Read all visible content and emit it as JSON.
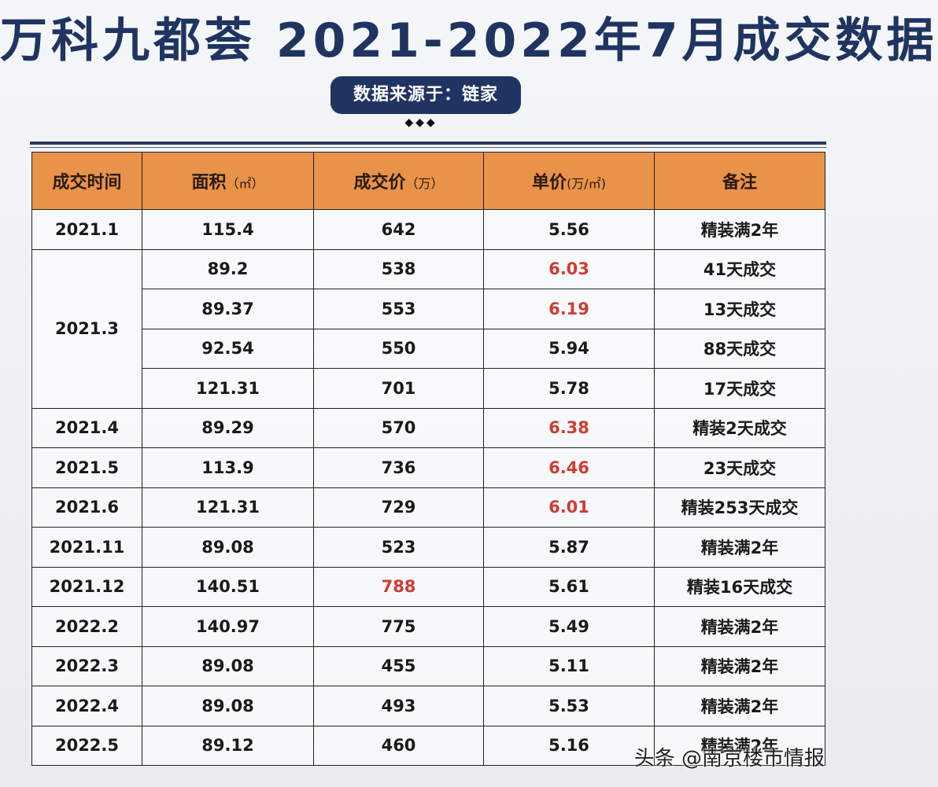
{
  "header": {
    "title": "万科九都荟 2021-2022年7月成交数据",
    "source": "数据来源于：链家",
    "ornament": "◆◆◆"
  },
  "table": {
    "columns": [
      {
        "label": "成交时间",
        "unit": ""
      },
      {
        "label": "面积",
        "unit": "（㎡）"
      },
      {
        "label": "成交价",
        "unit": "（万）"
      },
      {
        "label": "单价",
        "unit": "(万/㎡)"
      },
      {
        "label": "备注",
        "unit": ""
      }
    ],
    "rows": [
      {
        "date": "2021.1",
        "area": "115.4",
        "price": "642",
        "unit_price": "5.56",
        "note": "精装满2年",
        "date_rowspan": 1,
        "price_red": false,
        "unit_red": false
      },
      {
        "date": "2021.3",
        "area": "89.2",
        "price": "538",
        "unit_price": "6.03",
        "note": "41天成交",
        "date_rowspan": 4,
        "price_red": false,
        "unit_red": true
      },
      {
        "date": "",
        "area": "89.37",
        "price": "553",
        "unit_price": "6.19",
        "note": "13天成交",
        "date_rowspan": 0,
        "price_red": false,
        "unit_red": true
      },
      {
        "date": "",
        "area": "92.54",
        "price": "550",
        "unit_price": "5.94",
        "note": "88天成交",
        "date_rowspan": 0,
        "price_red": false,
        "unit_red": false
      },
      {
        "date": "",
        "area": "121.31",
        "price": "701",
        "unit_price": "5.78",
        "note": "17天成交",
        "date_rowspan": 0,
        "price_red": false,
        "unit_red": false
      },
      {
        "date": "2021.4",
        "area": "89.29",
        "price": "570",
        "unit_price": "6.38",
        "note": "精装2天成交",
        "date_rowspan": 1,
        "price_red": false,
        "unit_red": true
      },
      {
        "date": "2021.5",
        "area": "113.9",
        "price": "736",
        "unit_price": "6.46",
        "note": "23天成交",
        "date_rowspan": 1,
        "price_red": false,
        "unit_red": true
      },
      {
        "date": "2021.6",
        "area": "121.31",
        "price": "729",
        "unit_price": "6.01",
        "note": "精装253天成交",
        "date_rowspan": 1,
        "price_red": false,
        "unit_red": true
      },
      {
        "date": "2021.11",
        "area": "89.08",
        "price": "523",
        "unit_price": "5.87",
        "note": "精装满2年",
        "date_rowspan": 1,
        "price_red": false,
        "unit_red": false
      },
      {
        "date": "2021.12",
        "area": "140.51",
        "price": "788",
        "unit_price": "5.61",
        "note": "精装16天成交",
        "date_rowspan": 1,
        "price_red": true,
        "unit_red": false
      },
      {
        "date": "2022.2",
        "area": "140.97",
        "price": "775",
        "unit_price": "5.49",
        "note": "精装满2年",
        "date_rowspan": 1,
        "price_red": false,
        "unit_red": false
      },
      {
        "date": "2022.3",
        "area": "89.08",
        "price": "455",
        "unit_price": "5.11",
        "note": "精装满2年",
        "date_rowspan": 1,
        "price_red": false,
        "unit_red": false
      },
      {
        "date": "2022.4",
        "area": "89.08",
        "price": "493",
        "unit_price": "5.53",
        "note": "精装满2年",
        "date_rowspan": 1,
        "price_red": false,
        "unit_red": false
      },
      {
        "date": "2022.5",
        "area": "89.12",
        "price": "460",
        "unit_price": "5.16",
        "note": "精装满2年",
        "date_rowspan": 1,
        "price_red": false,
        "unit_red": false
      }
    ]
  },
  "watermark": "头条 @南京楼市情报",
  "colors": {
    "title": "#1f3461",
    "header_bg": "#e8924a",
    "highlight_red": "#d23a32"
  }
}
